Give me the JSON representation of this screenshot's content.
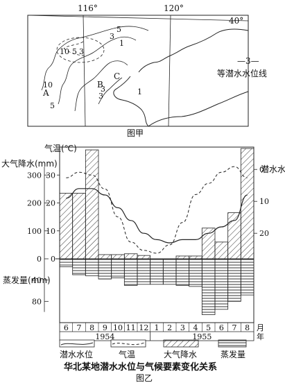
{
  "figure_a": {
    "caption": "图甲",
    "longitudes": [
      "116°",
      "120°"
    ],
    "latitude": "40°",
    "legend": {
      "sample": "—3—",
      "label": "等潜水水位线"
    },
    "point_labels": [
      "A",
      "B",
      "C"
    ],
    "contour_labels": [
      "5",
      "3",
      "1",
      "10",
      "5",
      "3",
      "10",
      "5",
      "3",
      "1",
      "3"
    ]
  },
  "figure_b": {
    "caption": "图乙",
    "title": "华北某地潜水水位与气候要素变化关系",
    "left_axis_precip": {
      "label": "大气降水(mm)",
      "ticks": [
        "300",
        "200",
        "100",
        "0"
      ]
    },
    "left_axis_evap": {
      "label": "蒸发量(mm)",
      "ticks": [
        "40",
        "80"
      ]
    },
    "temp_axis": {
      "label": "气温(℃)",
      "ticks": [
        "30",
        "20",
        "10",
        "0"
      ]
    },
    "right_axis": {
      "label": "潜水水位埋深(m)",
      "ticks": [
        "0",
        "10",
        "20"
      ]
    },
    "months": [
      "6",
      "7",
      "8",
      "9",
      "10",
      "11",
      "12",
      "1",
      "2",
      "3",
      "4",
      "5",
      "6",
      "7",
      "8"
    ],
    "month_unit": "月",
    "year_unit": "年",
    "years": [
      "1954",
      "1955"
    ],
    "legend": [
      {
        "key": "water_level",
        "label": "潜水水位"
      },
      {
        "key": "temperature",
        "label": "气温"
      },
      {
        "key": "precipitation",
        "label": "大气降水"
      },
      {
        "key": "evaporation",
        "label": "蒸发量"
      }
    ]
  },
  "chart_data": {
    "type": "bar",
    "title": "华北某地潜水水位与气候要素变化关系",
    "categories": [
      "1954-6",
      "1954-7",
      "1954-8",
      "1954-9",
      "1954-10",
      "1954-11",
      "1954-12",
      "1955-1",
      "1955-2",
      "1955-3",
      "1955-4",
      "1955-5",
      "1955-6",
      "1955-7",
      "1955-8"
    ],
    "series": [
      {
        "name": "大气降水",
        "unit": "mm",
        "values": [
          235,
          235,
          390,
          15,
          15,
          18,
          12,
          0,
          0,
          10,
          10,
          110,
          60,
          165,
          395
        ]
      },
      {
        "name": "蒸发量",
        "unit": "mm",
        "values": [
          15,
          30,
          32,
          38,
          36,
          50,
          48,
          48,
          48,
          50,
          52,
          105,
          95,
          80,
          68
        ]
      },
      {
        "name": "气温",
        "unit": "℃",
        "values": [
          29,
          31,
          30,
          25,
          15,
          6,
          3,
          2,
          5,
          13,
          23,
          27,
          31,
          33,
          29
        ]
      },
      {
        "name": "潜水水位",
        "unit": "m",
        "values": [
          9,
          6,
          6,
          8,
          12,
          16,
          20,
          22,
          23,
          22,
          22,
          20,
          18,
          16,
          8
        ]
      }
    ],
    "ylim_precip": [
      0,
      400
    ],
    "ylim_evap": [
      0,
      120
    ],
    "ylim_temp": [
      0,
      40
    ],
    "ylim_depth": [
      -7,
      28
    ]
  }
}
